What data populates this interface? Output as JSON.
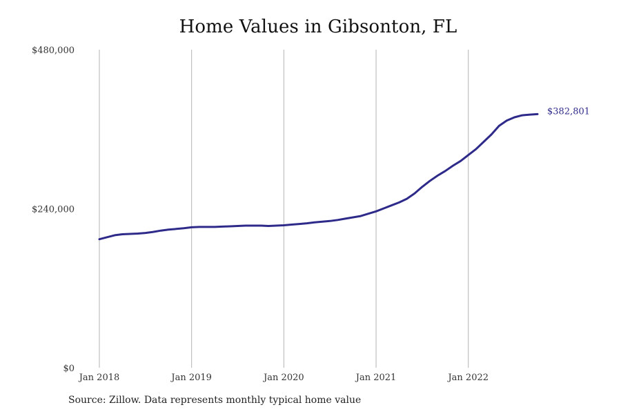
{
  "chart_data": {
    "type": "line",
    "title": "Home Values in Gibsonton, FL",
    "xlabel": "",
    "ylabel": "",
    "ylim": [
      0,
      480000
    ],
    "yticks": [
      0,
      240000,
      480000
    ],
    "ytick_labels": [
      "$0",
      "$240,000",
      "$480,000"
    ],
    "xticks": [
      "2018-01",
      "2019-01",
      "2020-01",
      "2021-01",
      "2022-01"
    ],
    "xtick_labels": [
      "Jan 2018",
      "Jan 2019",
      "Jan 2020",
      "Jan 2021",
      "Jan 2022"
    ],
    "x_range": [
      "2018-01",
      "2022-10"
    ],
    "grid": "vertical lines at x ticks",
    "legend": "none",
    "line_color": "#2e2a8a",
    "series": [
      {
        "x": [
          "2018-01",
          "2018-02",
          "2018-03",
          "2018-04",
          "2018-05",
          "2018-06",
          "2018-07",
          "2018-08",
          "2018-09",
          "2018-10",
          "2018-11",
          "2018-12",
          "2019-01",
          "2019-02",
          "2019-03",
          "2019-04",
          "2019-05",
          "2019-06",
          "2019-07",
          "2019-08",
          "2019-09",
          "2019-10",
          "2019-11",
          "2019-12",
          "2020-01",
          "2020-02",
          "2020-03",
          "2020-04",
          "2020-05",
          "2020-06",
          "2020-07",
          "2020-08",
          "2020-09",
          "2020-10",
          "2020-11",
          "2020-12",
          "2021-01",
          "2021-02",
          "2021-03",
          "2021-04",
          "2021-05",
          "2021-06",
          "2021-07",
          "2021-08",
          "2021-09",
          "2021-10",
          "2021-11",
          "2021-12",
          "2022-01",
          "2022-02",
          "2022-03",
          "2022-04",
          "2022-05",
          "2022-06",
          "2022-07",
          "2022-08",
          "2022-09",
          "2022-10"
        ],
        "values": [
          194000,
          197000,
          200000,
          201500,
          202000,
          202500,
          203500,
          205000,
          207000,
          208500,
          209500,
          210500,
          212000,
          212500,
          212500,
          212500,
          213000,
          213500,
          214000,
          214500,
          214500,
          214500,
          214000,
          214500,
          215000,
          216000,
          217000,
          218000,
          219500,
          220500,
          221500,
          223000,
          225000,
          227000,
          229000,
          232500,
          236000,
          240500,
          245000,
          249500,
          255000,
          263000,
          273000,
          282000,
          290000,
          297000,
          305000,
          312000,
          321000,
          330000,
          341000,
          352000,
          365000,
          373000,
          378000,
          381000,
          382000,
          382801
        ],
        "end_label": "$382,801"
      }
    ]
  },
  "source_note": "Source: Zillow. Data represents monthly typical home value"
}
